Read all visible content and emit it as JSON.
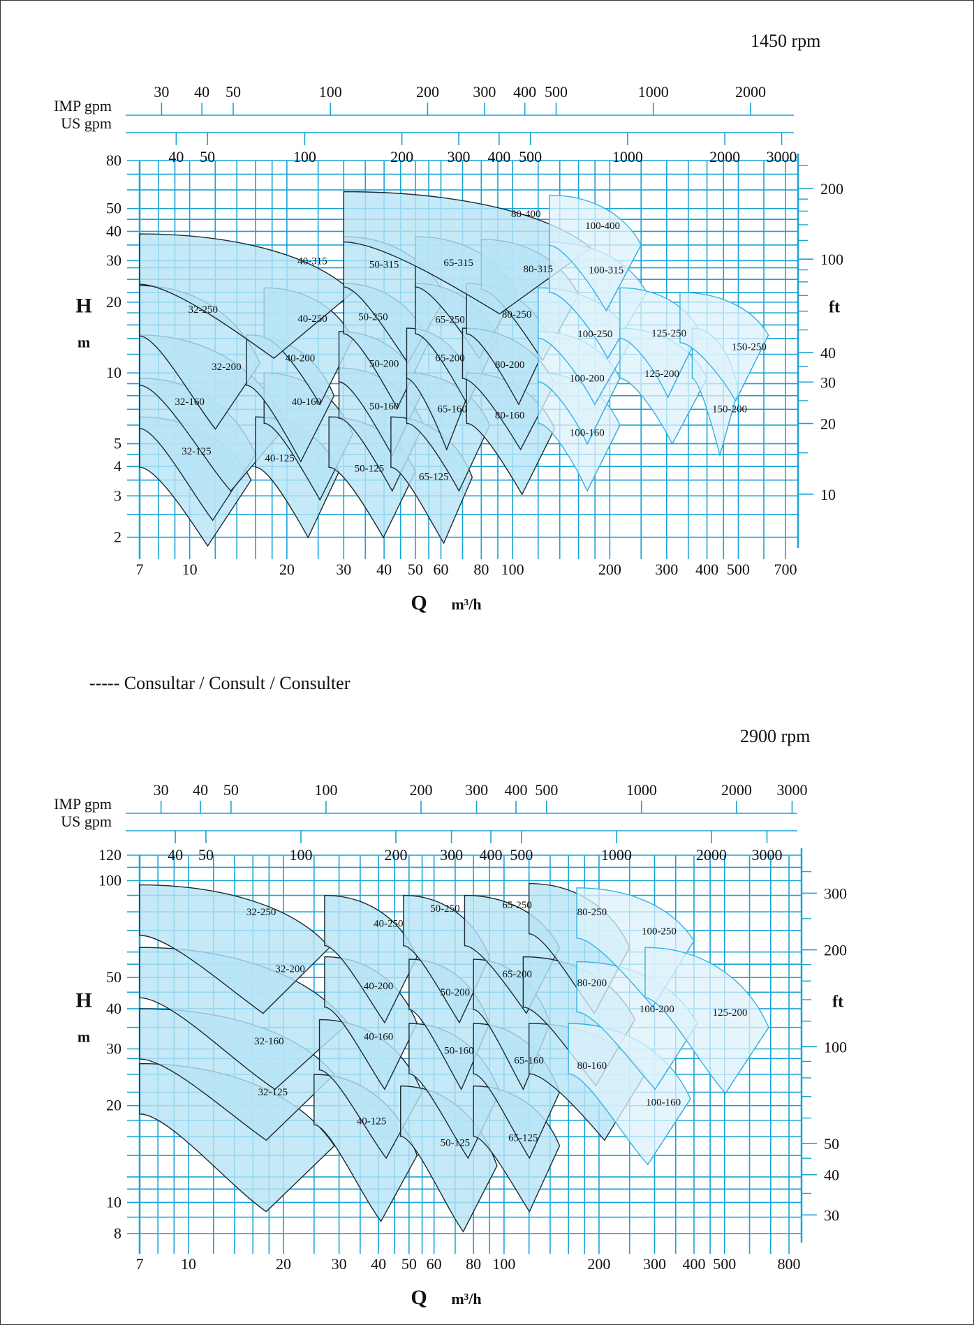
{
  "note": "----- Consultar / Consult / Consulter",
  "colors": {
    "grid": "#19a3d6",
    "fill": "#b7e3f5",
    "fill_light": "#ddf2fb",
    "outline": "#1d2a33",
    "consult": "#34b3e0"
  },
  "charts": [
    {
      "rpm": "1450 rpm",
      "y_title": "H",
      "y_unit": "m",
      "ft_title": "ft",
      "x_title": "Q",
      "x_unit": "m³/h",
      "imp_label": "IMP gpm",
      "us_label": "US gpm",
      "chart_data": {
        "type": "area",
        "x_scale": "log",
        "y_scale": "log",
        "xlim": [
          7,
          700
        ],
        "ylim": [
          1.8,
          80
        ],
        "x_ticks": [
          "7",
          "10",
          "20",
          "30",
          "40",
          "50",
          "60",
          "80",
          "100",
          "200",
          "300",
          "400",
          "500",
          "700"
        ],
        "y_ticks": [
          "2",
          "3",
          "4",
          "5",
          "10",
          "20",
          "30",
          "40",
          "50",
          "80"
        ],
        "ft_ticks": [
          "10",
          "20",
          "30",
          "40",
          "100",
          "200"
        ],
        "imp_ticks": [
          "30",
          "40",
          "50",
          "100",
          "200",
          "300",
          "400",
          "500",
          "1000",
          "2000"
        ],
        "us_ticks": [
          "40",
          "50",
          "100",
          "200",
          "300",
          "400",
          "500",
          "1000",
          "2000",
          "3000"
        ],
        "regions": [
          {
            "label": "32-125",
            "q1": 7,
            "q2": 15.5,
            "h1": 6.5,
            "h2": 3.5,
            "cut": 0.56,
            "lq": 10.5,
            "lh": 4.5
          },
          {
            "label": "32-160",
            "q1": 7,
            "q2": 16,
            "h1": 9.5,
            "h2": 4.5,
            "cut": 0.58,
            "lq": 10,
            "lh": 7.3
          },
          {
            "label": "32-200",
            "q1": 7,
            "q2": 20,
            "h1": 14.5,
            "h2": 6,
            "cut": 0.57,
            "lq": 13,
            "lh": 10.3
          },
          {
            "label": "32-250",
            "q1": 7,
            "q2": 16.5,
            "h1": 23.5,
            "h2": 11,
            "cut": 0.58,
            "lq": 11,
            "lh": 18
          },
          {
            "label": "40-125",
            "q1": 16,
            "q2": 29,
            "h1": 6.5,
            "h2": 3.8,
            "cut": 0.58,
            "lq": 19,
            "lh": 4.2
          },
          {
            "label": "40-160",
            "q1": 17,
            "q2": 32,
            "h1": 10,
            "h2": 5.5,
            "cut": 0.58,
            "lq": 23,
            "lh": 7.3
          },
          {
            "label": "40-200",
            "q1": 15,
            "q2": 28,
            "h1": 14.5,
            "h2": 8,
            "cut": 0.57,
            "lq": 22,
            "lh": 11.2
          },
          {
            "label": "40-250",
            "q1": 17,
            "q2": 32,
            "h1": 23,
            "h2": 14,
            "cut": 0.58,
            "lq": 24,
            "lh": 16.5
          },
          {
            "label": "40-315",
            "q1": 7,
            "q2": 32,
            "h1": 39,
            "h2": 22,
            "cut": 0.58,
            "lq": 24,
            "lh": 29
          },
          {
            "label": "50-125",
            "q1": 27,
            "q2": 50,
            "h1": 6.5,
            "h2": 3.8,
            "cut": 0.58,
            "lq": 36,
            "lh": 3.8
          },
          {
            "label": "50-160",
            "q1": 29,
            "q2": 53,
            "h1": 10.5,
            "h2": 6,
            "cut": 0.58,
            "lq": 40,
            "lh": 7
          },
          {
            "label": "50-200",
            "q1": 29,
            "q2": 53,
            "h1": 15,
            "h2": 8.5,
            "cut": 0.58,
            "lq": 40,
            "lh": 10.6
          },
          {
            "label": "50-250",
            "q1": 30,
            "q2": 55,
            "h1": 24,
            "h2": 13.5,
            "cut": 0.58,
            "lq": 37,
            "lh": 16.8
          },
          {
            "label": "50-315",
            "q1": 30,
            "q2": 62,
            "h1": 38,
            "h2": 21,
            "cut": 0.58,
            "lq": 40,
            "lh": 28
          },
          {
            "label": "65-125",
            "q1": 42,
            "q2": 75,
            "h1": 6.5,
            "h2": 3.6,
            "cut": 0.6,
            "lq": 57,
            "lh": 3.5
          },
          {
            "label": "65-160",
            "q1": 47,
            "q2": 85,
            "h1": 10,
            "h2": 6,
            "cut": 0.58,
            "lq": 65,
            "lh": 6.8
          },
          {
            "label": "65-200",
            "q1": 47,
            "q2": 75,
            "h1": 15.5,
            "h2": 9,
            "cut": 0.56,
            "lq": 64,
            "lh": 11.2
          },
          {
            "label": "65-250",
            "q1": 50,
            "q2": 90,
            "h1": 24,
            "h2": 14,
            "cut": 0.58,
            "lq": 64,
            "lh": 16.3
          },
          {
            "label": "65-315",
            "q1": 50,
            "q2": 103,
            "h1": 38,
            "h2": 22,
            "cut": 0.58,
            "lq": 68,
            "lh": 28.5
          },
          {
            "label": "80-160",
            "q1": 72,
            "q2": 135,
            "h1": 10,
            "h2": 5.8,
            "cut": 0.58,
            "lq": 98,
            "lh": 6.4
          },
          {
            "label": "80-200",
            "q1": 70,
            "q2": 135,
            "h1": 15.5,
            "h2": 9,
            "cut": 0.58,
            "lq": 98,
            "lh": 10.5
          },
          {
            "label": "80-250",
            "q1": 72,
            "q2": 130,
            "h1": 24,
            "h2": 14,
            "cut": 0.58,
            "lq": 103,
            "lh": 17.2
          },
          {
            "label": "80-315",
            "q1": 80,
            "q2": 160,
            "h1": 37,
            "h2": 21.5,
            "cut": 0.58,
            "lq": 120,
            "lh": 26.8
          },
          {
            "label": "80-400",
            "q1": 30,
            "q2": 175,
            "h1": 59,
            "h2": 34,
            "cut": 0.58,
            "lq": 110,
            "lh": 46
          },
          {
            "label": "100-160",
            "q1": 120,
            "q2": 215,
            "h1": 10,
            "h2": 6,
            "cut": 0.55,
            "lq": 170,
            "lh": 5.4,
            "consult": true
          },
          {
            "label": "100-200",
            "q1": 120,
            "q2": 215,
            "h1": 15,
            "h2": 9.5,
            "cut": 0.55,
            "lq": 170,
            "lh": 9.2,
            "consult": true
          },
          {
            "label": "100-250",
            "q1": 120,
            "q2": 235,
            "h1": 23,
            "h2": 14,
            "cut": 0.55,
            "lq": 180,
            "lh": 14.2,
            "consult": true
          },
          {
            "label": "100-315",
            "q1": 130,
            "q2": 260,
            "h1": 36,
            "h2": 22,
            "cut": 0.55,
            "lq": 195,
            "lh": 26.5,
            "consult": true
          },
          {
            "label": "100-400",
            "q1": 130,
            "q2": 250,
            "h1": 57,
            "h2": 35,
            "cut": 0.57,
            "lq": 190,
            "lh": 41,
            "consult": true
          },
          {
            "label": "125-200",
            "q1": 215,
            "q2": 400,
            "h1": 15.5,
            "h2": 9.5,
            "cut": 0.55,
            "lq": 290,
            "lh": 9.6,
            "consult": true
          },
          {
            "label": "125-250",
            "q1": 215,
            "q2": 380,
            "h1": 23,
            "h2": 15,
            "cut": 0.55,
            "lq": 305,
            "lh": 14.3,
            "consult": true
          },
          {
            "label": "150-200",
            "q1": 360,
            "q2": 500,
            "h1": 15.5,
            "h2": 8.5,
            "cut": 0.55,
            "lq": 470,
            "lh": 6.8,
            "consult": true
          },
          {
            "label": "150-250",
            "q1": 330,
            "q2": 620,
            "h1": 22,
            "h2": 14.5,
            "cut": 0.58,
            "lq": 540,
            "lh": 12.5,
            "consult": true
          }
        ]
      }
    },
    {
      "rpm": "2900 rpm",
      "y_title": "H",
      "y_unit": "m",
      "ft_title": "ft",
      "x_title": "Q",
      "x_unit": "m³/h",
      "imp_label": "IMP gpm",
      "us_label": "US gpm",
      "chart_data": {
        "type": "area",
        "x_scale": "log",
        "y_scale": "log",
        "xlim": [
          7,
          800
        ],
        "ylim": [
          7.5,
          120
        ],
        "x_ticks": [
          "7",
          "10",
          "20",
          "30",
          "40",
          "50",
          "60",
          "80",
          "100",
          "200",
          "300",
          "400",
          "500",
          "800"
        ],
        "y_ticks": [
          "8",
          "10",
          "20",
          "30",
          "40",
          "50",
          "100",
          "120"
        ],
        "ft_ticks": [
          "30",
          "40",
          "50",
          "100",
          "200",
          "300"
        ],
        "imp_ticks": [
          "30",
          "40",
          "50",
          "100",
          "200",
          "300",
          "400",
          "500",
          "1000",
          "2000",
          "3000"
        ],
        "us_ticks": [
          "40",
          "50",
          "100",
          "200",
          "300",
          "400",
          "500",
          "1000",
          "2000",
          "3000"
        ],
        "regions": [
          {
            "label": "32-125",
            "q1": 7,
            "q2": 29,
            "h1": 27,
            "h2": 15,
            "cut": 0.6,
            "lq": 18.5,
            "lh": 21.5
          },
          {
            "label": "32-160",
            "q1": 7,
            "q2": 29,
            "h1": 40,
            "h2": 25,
            "cut": 0.6,
            "lq": 18,
            "lh": 31
          },
          {
            "label": "32-200",
            "q1": 7,
            "q2": 32,
            "h1": 62,
            "h2": 36,
            "cut": 0.6,
            "lq": 21,
            "lh": 52
          },
          {
            "label": "32-250",
            "q1": 7,
            "q2": 28,
            "h1": 97,
            "h2": 62,
            "cut": 0.6,
            "lq": 17,
            "lh": 78
          },
          {
            "label": "40-125",
            "q1": 25,
            "q2": 53,
            "h1": 25,
            "h2": 14,
            "cut": 0.6,
            "lq": 38,
            "lh": 17.5
          },
          {
            "label": "40-160",
            "q1": 26,
            "q2": 55,
            "h1": 37,
            "h2": 22,
            "cut": 0.6,
            "lq": 40,
            "lh": 32
          },
          {
            "label": "40-200",
            "q1": 27,
            "q2": 53,
            "h1": 58,
            "h2": 36,
            "cut": 0.6,
            "lq": 40,
            "lh": 46
          },
          {
            "label": "40-250",
            "q1": 27,
            "q2": 53,
            "h1": 90,
            "h2": 58,
            "cut": 0.6,
            "lq": 43,
            "lh": 72
          },
          {
            "label": "50-125",
            "q1": 47,
            "q2": 95,
            "h1": 23,
            "h2": 13,
            "cut": 0.6,
            "lq": 70,
            "lh": 15
          },
          {
            "label": "50-160",
            "q1": 50,
            "q2": 97,
            "h1": 36,
            "h2": 22,
            "cut": 0.6,
            "lq": 72,
            "lh": 29
          },
          {
            "label": "50-200",
            "q1": 50,
            "q2": 90,
            "h1": 57,
            "h2": 36,
            "cut": 0.6,
            "lq": 70,
            "lh": 44
          },
          {
            "label": "50-250",
            "q1": 48,
            "q2": 90,
            "h1": 90,
            "h2": 58,
            "cut": 0.6,
            "lq": 65,
            "lh": 80
          },
          {
            "label": "65-125",
            "q1": 80,
            "q2": 150,
            "h1": 23,
            "h2": 15,
            "cut": 0.6,
            "lq": 115,
            "lh": 15.5
          },
          {
            "label": "65-160",
            "q1": 80,
            "q2": 150,
            "h1": 36,
            "h2": 22,
            "cut": 0.6,
            "lq": 120,
            "lh": 27
          },
          {
            "label": "65-200",
            "q1": 80,
            "q2": 140,
            "h1": 57,
            "h2": 36,
            "cut": 0.6,
            "lq": 110,
            "lh": 50
          },
          {
            "label": "65-250",
            "q1": 75,
            "q2": 150,
            "h1": 90,
            "h2": 62,
            "cut": 0.6,
            "lq": 110,
            "lh": 82
          },
          {
            "label": "80-160",
            "q1": 120,
            "q2": 280,
            "h1": 36,
            "h2": 25,
            "cut": 0.6,
            "lq": 190,
            "lh": 26
          },
          {
            "label": "80-200",
            "q1": 115,
            "q2": 260,
            "h1": 58,
            "h2": 37,
            "cut": 0.6,
            "lq": 190,
            "lh": 47
          },
          {
            "label": "80-250",
            "q1": 120,
            "q2": 250,
            "h1": 98,
            "h2": 62,
            "cut": 0.6,
            "lq": 190,
            "lh": 78
          },
          {
            "label": "100-160",
            "q1": 160,
            "q2": 390,
            "h1": 36,
            "h2": 21,
            "cut": 0.6,
            "lq": 320,
            "lh": 20,
            "consult": true
          },
          {
            "label": "100-200",
            "q1": 170,
            "q2": 410,
            "h1": 56,
            "h2": 36,
            "cut": 0.6,
            "lq": 305,
            "lh": 39,
            "consult": true
          },
          {
            "label": "100-250",
            "q1": 170,
            "q2": 400,
            "h1": 95,
            "h2": 65,
            "cut": 0.6,
            "lq": 310,
            "lh": 68,
            "consult": true
          },
          {
            "label": "125-200",
            "q1": 280,
            "q2": 690,
            "h1": 62,
            "h2": 35,
            "cut": 0.6,
            "lq": 520,
            "lh": 38,
            "consult": true
          }
        ]
      }
    }
  ]
}
